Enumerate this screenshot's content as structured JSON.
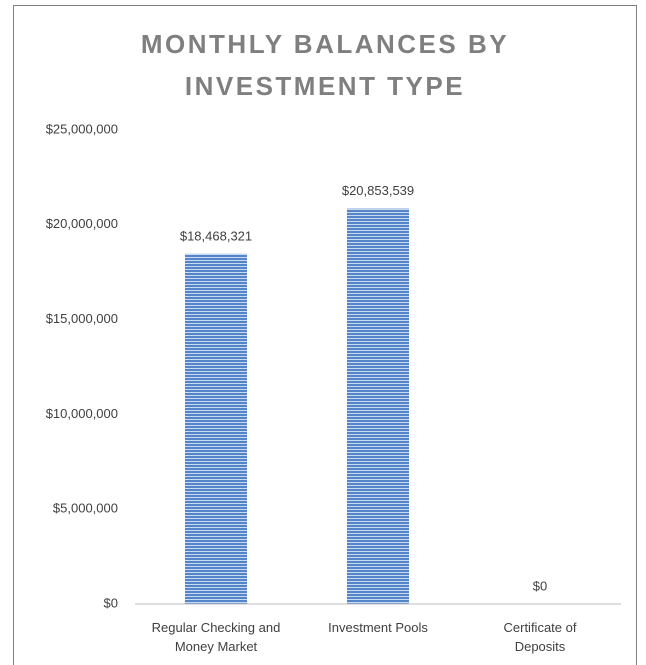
{
  "chart_data": {
    "type": "bar",
    "title": "MONTHLY BALANCES BY INVESTMENT TYPE",
    "categories": [
      "Regular Checking and Money Market",
      "Investment Pools",
      "Certificate of Deposits"
    ],
    "values": [
      18468321,
      20853539,
      0
    ],
    "value_labels": [
      "$18,468,321",
      "$20,853,539",
      "$0"
    ],
    "color": "#4f81bd",
    "ylim": [
      0,
      25000000
    ],
    "yticks": [
      {
        "value": 0,
        "label": "$0"
      },
      {
        "value": 5000000,
        "label": "$5,000,000"
      },
      {
        "value": 10000000,
        "label": "$10,000,000"
      },
      {
        "value": 15000000,
        "label": "$15,000,000"
      },
      {
        "value": 20000000,
        "label": "$20,000,000"
      },
      {
        "value": 25000000,
        "label": "$25,000,000"
      }
    ],
    "grid": false
  }
}
